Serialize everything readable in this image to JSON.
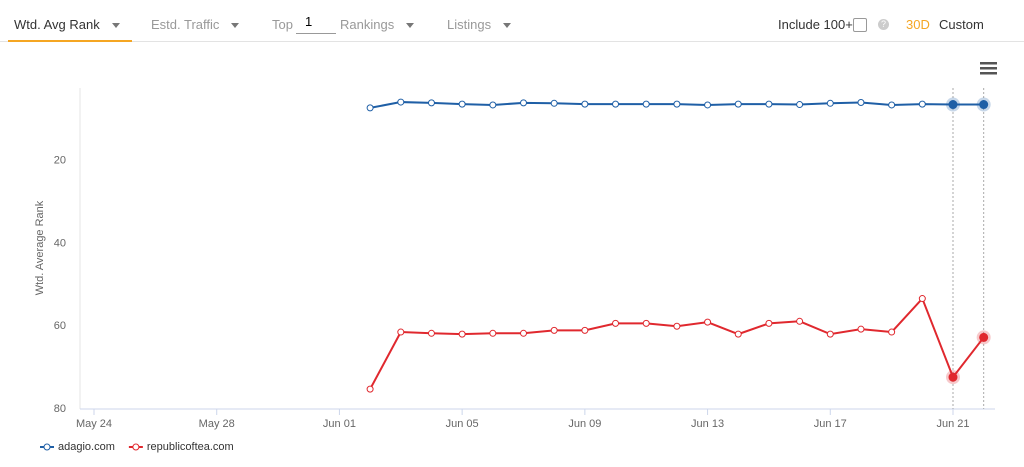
{
  "toolbar": {
    "tabs": [
      "Wtd. Avg Rank",
      "Estd. Traffic"
    ],
    "top_label": "Top",
    "top_value": "1",
    "rankings": "Rankings",
    "listings": "Listings",
    "include": "Include 100+",
    "range_30d": "30D",
    "range_custom": "Custom"
  },
  "chart_data": {
    "type": "line",
    "y_label": "Wtd. Average Rank",
    "categories": [
      "May 24",
      null,
      null,
      null,
      "May 28",
      null,
      null,
      null,
      "Jun 01",
      null,
      null,
      null,
      "Jun 05",
      null,
      null,
      null,
      "Jun 09",
      null,
      null,
      null,
      "Jun 13",
      null,
      null,
      null,
      "Jun 17",
      null,
      null,
      null,
      "Jun 21",
      null
    ],
    "series": [
      {
        "name": "adagio.com",
        "color": "#1f5fa6",
        "values": [
          null,
          null,
          null,
          null,
          null,
          null,
          null,
          null,
          null,
          7.2,
          5.8,
          6.0,
          6.3,
          6.5,
          6.0,
          6.1,
          6.3,
          6.3,
          6.3,
          6.3,
          6.5,
          6.3,
          6.3,
          6.4,
          6.1,
          5.9,
          6.5,
          6.3,
          6.4,
          6.4
        ]
      },
      {
        "name": "republicoftea.com",
        "color": "#e0282e",
        "values": [
          null,
          null,
          null,
          null,
          null,
          null,
          null,
          null,
          null,
          75.2,
          61.4,
          61.7,
          61.9,
          61.7,
          61.7,
          61.0,
          61.0,
          59.3,
          59.3,
          60.0,
          59.0,
          61.9,
          59.3,
          58.8,
          61.9,
          60.7,
          61.4,
          53.3,
          72.3,
          62.7
        ]
      }
    ],
    "ylim": [
      2.4,
      80
    ],
    "yticks": [
      20,
      40,
      60,
      80
    ],
    "y_reversed": true,
    "grid": false,
    "legend": "bottom-left"
  }
}
